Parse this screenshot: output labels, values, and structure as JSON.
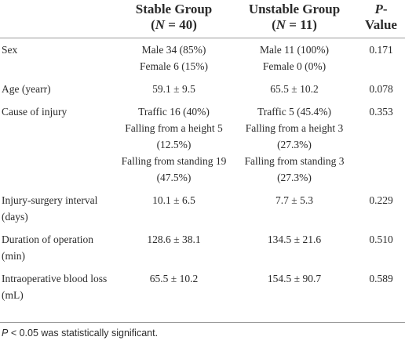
{
  "table": {
    "header": [
      null,
      {
        "line1": "Stable Group",
        "open": "(",
        "italic": "N",
        "close": " = 40)"
      },
      {
        "line1": "Unstable Group",
        "open": "(",
        "italic": "N",
        "close": " = 11)"
      },
      {
        "italic": "P",
        "rest": "-Value"
      }
    ],
    "rows": [
      {
        "label": "Sex",
        "stable": [
          "Male 34 (85%)",
          "Female 6 (15%)"
        ],
        "unstable": [
          "Male 11 (100%)",
          "Female 0 (0%)"
        ],
        "p": "0.171"
      },
      {
        "label": "Age (yearr)",
        "stable": [
          "59.1 ± 9.5"
        ],
        "unstable": [
          "65.5 ± 10.2"
        ],
        "p": "0.078"
      },
      {
        "label": "Cause of injury",
        "stable": [
          "Traffic 16 (40%)",
          "Falling from a height 5 (12.5%)",
          "Falling from standing 19 (47.5%)"
        ],
        "unstable": [
          "Traffic 5 (45.4%)",
          "Falling from a height 3 (27.3%)",
          "Falling from standing 3 (27.3%)"
        ],
        "p": "0.353"
      },
      {
        "label": "Injury-surgery interval (days)",
        "stable": [
          "10.1 ± 6.5"
        ],
        "unstable": [
          "7.7 ± 5.3"
        ],
        "p": "0.229"
      },
      {
        "label": "Duration of operation (min)",
        "stable": [
          "128.6 ± 38.1"
        ],
        "unstable": [
          "134.5 ± 21.6"
        ],
        "p": "0.510"
      },
      {
        "label": "Intraoperative blood loss (mL)",
        "stable": [
          "65.5 ± 10.2"
        ],
        "unstable": [
          "154.5 ± 90.7"
        ],
        "p": "0.589"
      }
    ],
    "footnote": {
      "italic": "P",
      "rest": " < 0.05 was statistically significant."
    }
  }
}
